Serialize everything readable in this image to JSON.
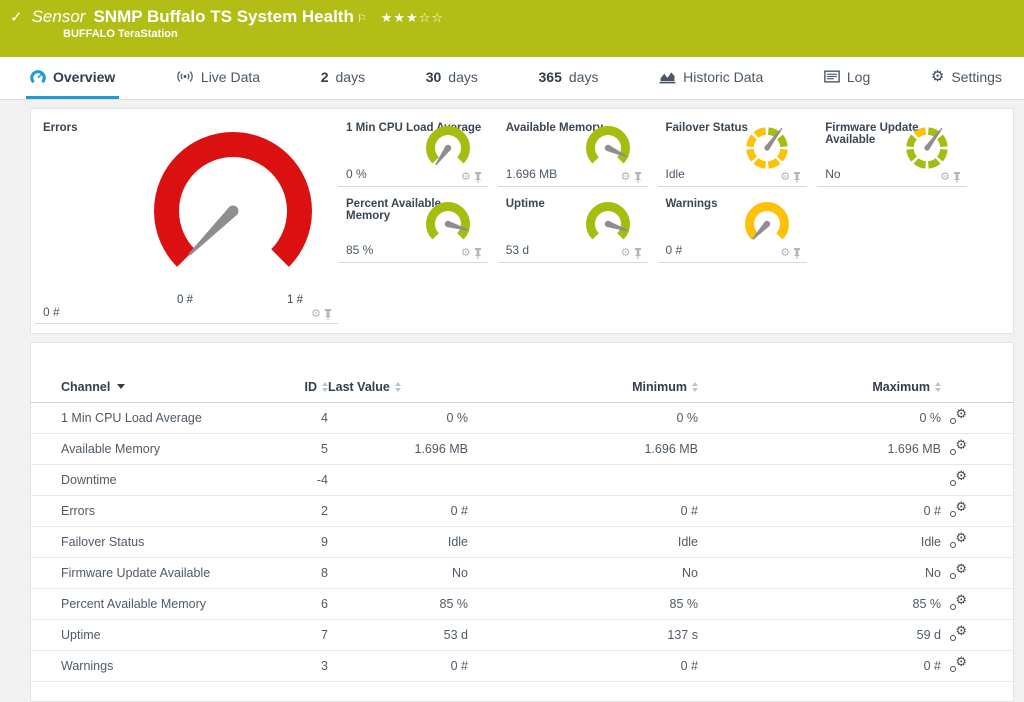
{
  "colors": {
    "brand": "#b2be16",
    "tab_blue": "#1e9cd8",
    "gauge_green": "#a6bc0e",
    "gauge_yellow": "#fdc105",
    "gauge_red": "#da1110",
    "needle": "#8e8e8e"
  },
  "header": {
    "check": "✓",
    "kind": "Sensor",
    "title": "SNMP Buffalo TS System Health",
    "flag": "⚐",
    "stars_filled": "★★★",
    "stars_empty": "☆☆",
    "subtitle": "BUFFALO TeraStation"
  },
  "tabs": [
    {
      "label": "Overview",
      "active": true
    },
    {
      "label": "Live Data"
    },
    {
      "num": "2",
      "label": "days"
    },
    {
      "num": "30",
      "label": "days"
    },
    {
      "num": "365",
      "label": "days"
    },
    {
      "label": "Historic Data"
    },
    {
      "label": "Log"
    },
    {
      "label": "Settings"
    }
  ],
  "gauges": {
    "big": {
      "title": "Errors",
      "value": "0 #",
      "scale_min": "0 #",
      "scale_max": "1 #",
      "type": "arc",
      "color": "#da1110",
      "size": 172,
      "r": 66.5,
      "stroke": 25,
      "needle": 135,
      "nlen": 62,
      "nbase": 5.5
    },
    "small": [
      {
        "title": "1 Min CPU Load Average",
        "value": "0 %",
        "type": "arc",
        "color": "#a6bc0e",
        "size": 56,
        "r": 17.5,
        "stroke": 9,
        "needle": 126,
        "nlen": 21,
        "nbase": 3.2
      },
      {
        "title": "Available Memory",
        "value": "1.696 MB",
        "type": "arc",
        "color": "#a6bc0e",
        "size": 56,
        "r": 17.5,
        "stroke": 9,
        "needle": 25,
        "nlen": 21,
        "nbase": 3.2
      },
      {
        "title": "Failover Status",
        "value": "Idle",
        "type": "ring",
        "segments": [
          "gauge_green",
          "gauge_green",
          "gauge_yellow",
          "gauge_yellow",
          "gauge_yellow",
          "gauge_yellow",
          "gauge_yellow",
          "gauge_yellow"
        ],
        "size": 56,
        "r": 17,
        "stroke": 7.5,
        "needle": -53,
        "nlen": 25,
        "nbase": 2.6
      },
      {
        "title": "Firmware Update Available",
        "value": "No",
        "type": "ring",
        "segments": [
          "gauge_green",
          "gauge_green",
          "gauge_green",
          "gauge_green",
          "gauge_green",
          "gauge_green",
          "gauge_green",
          "gauge_yellow"
        ],
        "size": 56,
        "r": 17,
        "stroke": 7.5,
        "needle": -53,
        "nlen": 25,
        "nbase": 2.6
      },
      {
        "title": "Percent Available Memory",
        "value": "85 %",
        "type": "arc",
        "color": "#a6bc0e",
        "size": 56,
        "r": 17.5,
        "stroke": 9,
        "needle": 17,
        "nlen": 21,
        "nbase": 3.2
      },
      {
        "title": "Uptime",
        "value": "53 d",
        "type": "arc",
        "color": "#a6bc0e",
        "size": 56,
        "r": 17.5,
        "stroke": 9,
        "needle": 19,
        "nlen": 21,
        "nbase": 3.2
      },
      {
        "title": "Warnings",
        "value": "0 #",
        "type": "arc",
        "color": "#fdc105",
        "size": 56,
        "r": 17.5,
        "stroke": 9,
        "needle": 133,
        "nlen": 21,
        "nbase": 3.2
      }
    ]
  },
  "table": {
    "columns": {
      "channel": "Channel",
      "id": "ID",
      "last": "Last Value",
      "min": "Minimum",
      "max": "Maximum"
    },
    "rows": [
      {
        "channel": "1 Min CPU Load Average",
        "id": "4",
        "last": "0 %",
        "min": "0 %",
        "max": "0 %"
      },
      {
        "channel": "Available Memory",
        "id": "5",
        "last": "1.696 MB",
        "min": "1.696 MB",
        "max": "1.696 MB"
      },
      {
        "channel": "Downtime",
        "id": "-4",
        "last": "",
        "min": "",
        "max": ""
      },
      {
        "channel": "Errors",
        "id": "2",
        "last": "0 #",
        "min": "0 #",
        "max": "0 #"
      },
      {
        "channel": "Failover Status",
        "id": "9",
        "last": "Idle",
        "min": "Idle",
        "max": "Idle"
      },
      {
        "channel": "Firmware Update Available",
        "id": "8",
        "last": "No",
        "min": "No",
        "max": "No"
      },
      {
        "channel": "Percent Available Memory",
        "id": "6",
        "last": "85 %",
        "min": "85 %",
        "max": "85 %"
      },
      {
        "channel": "Uptime",
        "id": "7",
        "last": "53 d",
        "min": "137 s",
        "max": "59 d"
      },
      {
        "channel": "Warnings",
        "id": "3",
        "last": "0 #",
        "min": "0 #",
        "max": "0 #"
      }
    ]
  }
}
